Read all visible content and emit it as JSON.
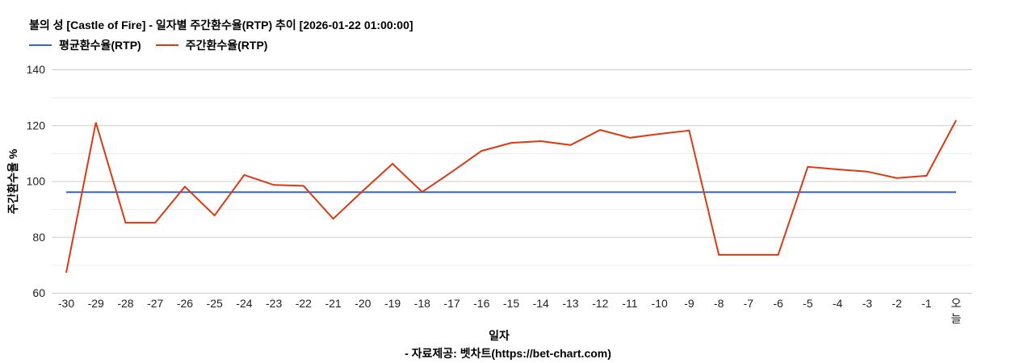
{
  "chart_data": {
    "type": "line",
    "title": "불의 성 [Castle of Fire] - 일자별 주간환수율(RTP) 추이 [2026-01-22 01:00:00]",
    "xlabel": "일자",
    "ylabel": "주간환수율 %",
    "ylim": [
      60,
      140
    ],
    "yticks": [
      60,
      80,
      100,
      120,
      140
    ],
    "grid": true,
    "legend_position": "top-left",
    "categories": [
      "-30",
      "-29",
      "-28",
      "-27",
      "-26",
      "-25",
      "-24",
      "-23",
      "-22",
      "-21",
      "-20",
      "-19",
      "-18",
      "-17",
      "-16",
      "-15",
      "-14",
      "-13",
      "-12",
      "-11",
      "-10",
      "-9",
      "-8",
      "-7",
      "-6",
      "-5",
      "-4",
      "-3",
      "-2",
      "-1",
      "오늘"
    ],
    "series": [
      {
        "name": "평균환수율(RTP)",
        "color": "#3366cc",
        "values": [
          96,
          96,
          96,
          96,
          96,
          96,
          96,
          96,
          96,
          96,
          96,
          96,
          96,
          96,
          96,
          96,
          96,
          96,
          96,
          96,
          96,
          96,
          96,
          96,
          96,
          96,
          96,
          96,
          96,
          96,
          96
        ]
      },
      {
        "name": "주간환수율(RTP)",
        "color": "#dc3912",
        "values": [
          67.2,
          121.0,
          85.1,
          85.1,
          98.0,
          87.7,
          102.2,
          98.6,
          98.3,
          86.5,
          96.5,
          106.2,
          96.1,
          103.3,
          110.8,
          113.7,
          114.3,
          112.9,
          118.3,
          115.5,
          116.9,
          118.1,
          73.6,
          73.6,
          73.6,
          105.1,
          104.2,
          103.4,
          101.1,
          101.9,
          121.8
        ]
      }
    ],
    "source_note": "- 자료제공: 벳차트(https://bet-chart.com)"
  },
  "header": {
    "title": "불의 성 [Castle of Fire] - 일자별 주간환수율(RTP) 추이 [2026-01-22 01:00:00]"
  },
  "legend": {
    "items": [
      {
        "label": "평균환수율(RTP)",
        "color": "#3366cc"
      },
      {
        "label": "주간환수율(RTP)",
        "color": "#dc3912"
      }
    ]
  },
  "axes": {
    "xlabel": "일자",
    "ylabel": "주간환수율 %"
  },
  "footer": {
    "source": "- 자료제공: 벳차트(https://bet-chart.com)"
  }
}
